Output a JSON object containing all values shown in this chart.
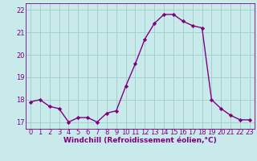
{
  "x": [
    0,
    1,
    2,
    3,
    4,
    5,
    6,
    7,
    8,
    9,
    10,
    11,
    12,
    13,
    14,
    15,
    16,
    17,
    18,
    19,
    20,
    21,
    22,
    23
  ],
  "y": [
    17.9,
    18.0,
    17.7,
    17.6,
    17.0,
    17.2,
    17.2,
    17.0,
    17.4,
    17.5,
    18.6,
    19.6,
    20.7,
    21.4,
    21.8,
    21.8,
    21.5,
    21.3,
    21.2,
    18.0,
    17.6,
    17.3,
    17.1,
    17.1
  ],
  "line_color": "#800080",
  "marker": "D",
  "marker_size": 2.2,
  "bg_color": "#c8eaea",
  "grid_color": "#a0cccc",
  "xlabel": "Windchill (Refroidissement éolien,°C)",
  "xlabel_color": "#800080",
  "tick_color": "#800080",
  "ylim": [
    16.7,
    22.3
  ],
  "xlim": [
    -0.5,
    23.5
  ],
  "yticks": [
    17,
    18,
    19,
    20,
    21,
    22
  ],
  "xticks": [
    0,
    1,
    2,
    3,
    4,
    5,
    6,
    7,
    8,
    9,
    10,
    11,
    12,
    13,
    14,
    15,
    16,
    17,
    18,
    19,
    20,
    21,
    22,
    23
  ],
  "line_width": 1.0,
  "tick_fontsize": 6.0,
  "xlabel_fontsize": 6.5
}
